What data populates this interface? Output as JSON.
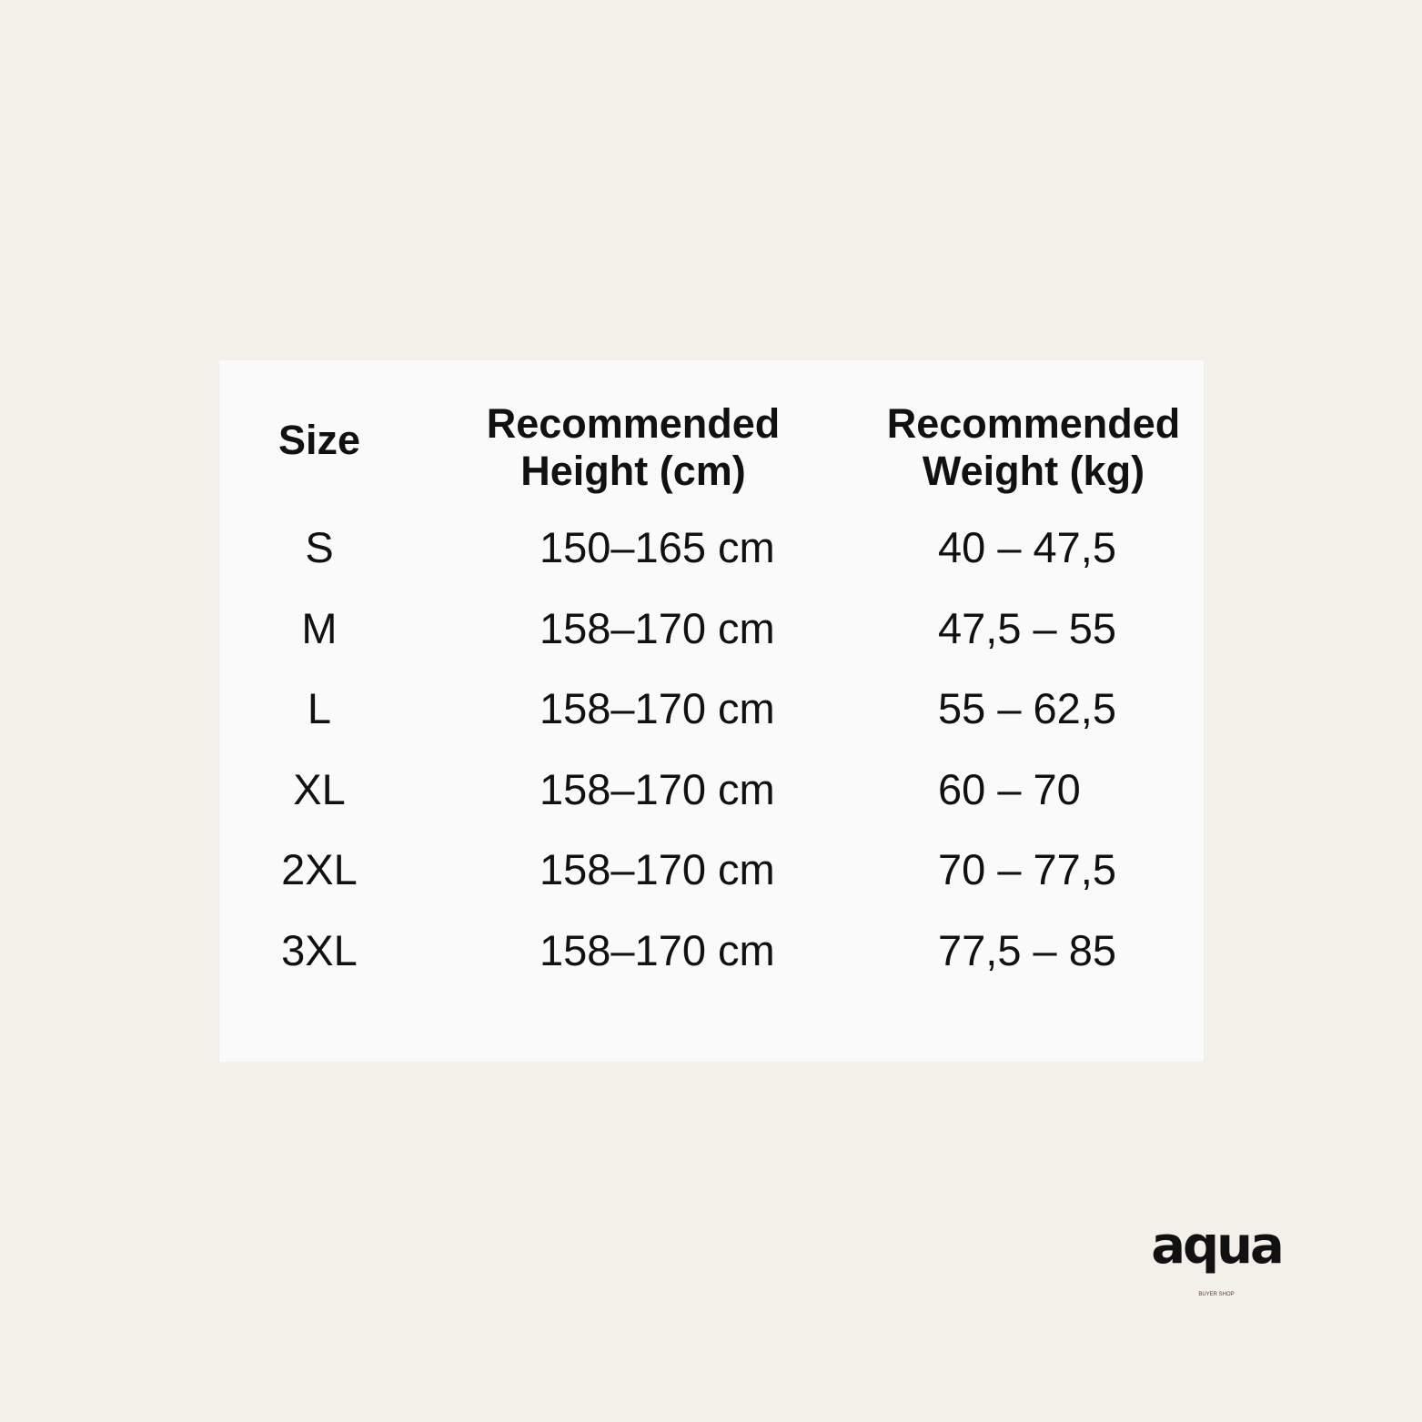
{
  "table": {
    "headers": [
      "Size",
      "Recommended Height (cm)",
      "Recommended Weight (kg)"
    ],
    "header_lines": [
      [
        "Size"
      ],
      [
        "Recommended",
        "Height (cm)"
      ],
      [
        "Recommended",
        "Weight (kg)"
      ]
    ],
    "rows": [
      [
        "S",
        "150–165 cm",
        "40 – 47,5"
      ],
      [
        "M",
        "158–170 cm",
        "47,5 – 55"
      ],
      [
        "L",
        "158–170 cm",
        "55 – 62,5"
      ],
      [
        "XL",
        "158–170 cm",
        "60 – 70"
      ],
      [
        "2XL",
        "158–170 cm",
        "70 – 77,5"
      ],
      [
        "3XL",
        "158–170 cm",
        "77,5 – 85"
      ]
    ]
  },
  "logo": {
    "word": "aqua",
    "subtitle": "BUYER SHOP"
  },
  "colors": {
    "background": "#f3f0e9",
    "card": "#fafafa",
    "text": "#111111"
  }
}
